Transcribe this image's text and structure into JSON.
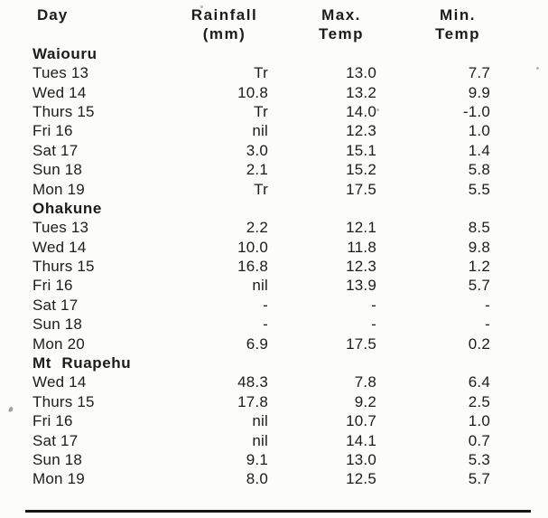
{
  "page": {
    "background_color": "#fcfcfa",
    "text_color": "#1c1c1c",
    "rule_color": "#161616"
  },
  "table": {
    "header": {
      "day": "Day",
      "rainfall_line1": "Rainfall",
      "rainfall_line2": "(mm)",
      "max_line1": "Max.",
      "max_line2": "Temp",
      "min_line1": "Min.",
      "min_line2": "Temp"
    },
    "sections": [
      {
        "name": "Waiouru",
        "rows": [
          {
            "day": "Tues 13",
            "rainfall": "Tr",
            "max_temp": "13.0",
            "min_temp": "7.7"
          },
          {
            "day": "Wed 14",
            "rainfall": "10.8",
            "max_temp": "13.2",
            "min_temp": "9.9"
          },
          {
            "day": "Thurs 15",
            "rainfall": "Tr",
            "max_temp": "14.0",
            "min_temp": "-1.0"
          },
          {
            "day": "Fri 16",
            "rainfall": "nil",
            "max_temp": "12.3",
            "min_temp": "1.0"
          },
          {
            "day": "Sat 17",
            "rainfall": "3.0",
            "max_temp": "15.1",
            "min_temp": "1.4"
          },
          {
            "day": "Sun 18",
            "rainfall": "2.1",
            "max_temp": "15.2",
            "min_temp": "5.8"
          },
          {
            "day": "Mon 19",
            "rainfall": "Tr",
            "max_temp": "17.5",
            "min_temp": "5.5"
          }
        ]
      },
      {
        "name": "Ohakune",
        "rows": [
          {
            "day": "Tues 13",
            "rainfall": "2.2",
            "max_temp": "12.1",
            "min_temp": "8.5"
          },
          {
            "day": "Wed 14",
            "rainfall": "10.0",
            "max_temp": "11.8",
            "min_temp": "9.8"
          },
          {
            "day": "Thurs 15",
            "rainfall": "16.8",
            "max_temp": "12.3",
            "min_temp": "1.2"
          },
          {
            "day": "Fri 16",
            "rainfall": "nil",
            "max_temp": "13.9",
            "min_temp": "5.7"
          },
          {
            "day": "Sat 17",
            "rainfall": "-",
            "max_temp": "-",
            "min_temp": "-"
          },
          {
            "day": "Sun 18",
            "rainfall": "-",
            "max_temp": "-",
            "min_temp": "-"
          },
          {
            "day": "Mon 20",
            "rainfall": "6.9",
            "max_temp": "17.5",
            "min_temp": "0.2"
          }
        ]
      },
      {
        "name": "Mt Ruapehu",
        "rows": [
          {
            "day": "Wed 14",
            "rainfall": "48.3",
            "max_temp": "7.8",
            "min_temp": "6.4"
          },
          {
            "day": "Thurs 15",
            "rainfall": "17.8",
            "max_temp": "9.2",
            "min_temp": "2.5"
          },
          {
            "day": "Fri 16",
            "rainfall": "nil",
            "max_temp": "10.7",
            "min_temp": "1.0"
          },
          {
            "day": "Sat 17",
            "rainfall": "nil",
            "max_temp": "14.1",
            "min_temp": "0.7"
          },
          {
            "day": "Sun 18",
            "rainfall": "9.1",
            "max_temp": "13.0",
            "min_temp": "5.3"
          },
          {
            "day": "Mon 19",
            "rainfall": "8.0",
            "max_temp": "12.5",
            "min_temp": "5.7"
          }
        ]
      }
    ]
  }
}
